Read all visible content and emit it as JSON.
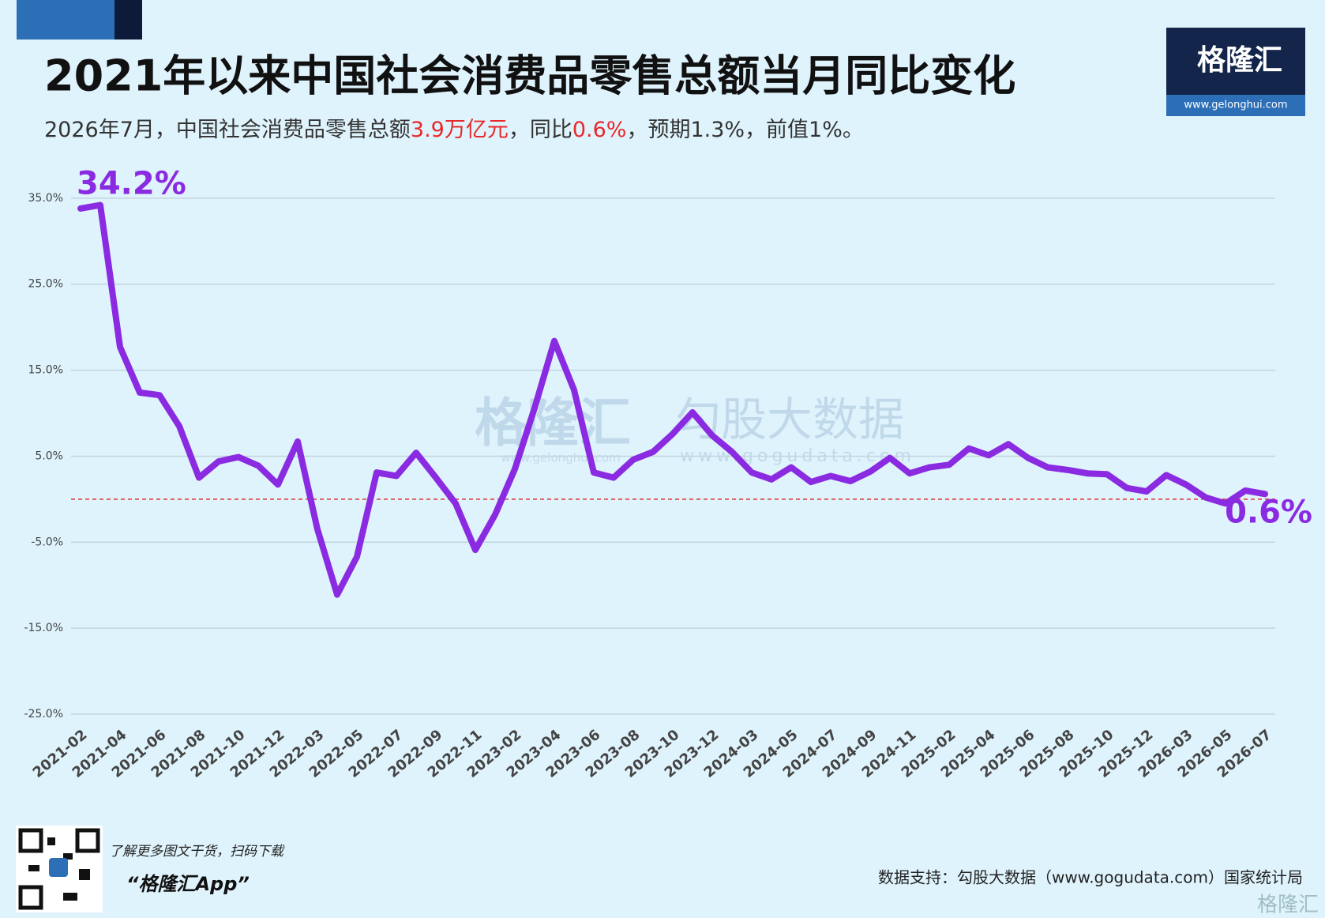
{
  "chart_data": {
    "type": "line",
    "title": "2021年以来中国社会消费品零售总额当月同比变化",
    "subtitle": [
      "2026年7月，中国社会消费品零售总额",
      "3.9万亿元",
      "，同比",
      "0.6%",
      "，预期1.3%，前值1%。"
    ],
    "subtitle_highlight_color": "#e8282b",
    "categories": [
      "2021-02",
      null,
      "2021-04",
      null,
      "2021-06",
      null,
      "2021-08",
      null,
      "2021-10",
      null,
      "2021-12",
      null,
      "2022-03",
      null,
      "2022-05",
      null,
      "2022-07",
      null,
      "2022-09",
      null,
      "2022-11",
      null,
      "2023-02",
      null,
      "2023-04",
      null,
      "2023-06",
      null,
      "2023-08",
      null,
      "2023-10",
      null,
      "2023-12",
      null,
      "2024-03",
      null,
      "2024-05",
      null,
      "2024-07",
      null,
      "2024-09",
      null,
      "2024-11",
      null,
      "2025-02",
      null,
      "2025-04",
      null,
      "2025-06",
      null,
      "2025-08",
      null,
      "2025-10",
      null,
      "2025-12",
      null,
      "2026-03",
      null,
      "2026-05",
      null,
      "2026-07"
    ],
    "series": [
      {
        "name": "社会消费品零售总额当月同比",
        "color": "#8a2be2",
        "values": [
          33.8,
          34.2,
          17.7,
          12.4,
          12.1,
          8.5,
          2.5,
          4.4,
          4.9,
          3.9,
          1.7,
          6.7,
          -3.5,
          -11.1,
          -6.7,
          3.1,
          2.7,
          5.4,
          2.5,
          -0.5,
          -5.9,
          -1.8,
          3.5,
          10.6,
          18.4,
          12.7,
          3.1,
          2.5,
          4.6,
          5.5,
          7.6,
          10.1,
          7.4,
          5.5,
          3.1,
          2.3,
          3.7,
          2.0,
          2.7,
          2.1,
          3.2,
          4.8,
          3.0,
          3.7,
          4.0,
          5.9,
          5.1,
          6.4,
          4.8,
          3.7,
          3.4,
          3.0,
          2.9,
          1.3,
          0.9,
          2.8,
          1.7,
          0.2,
          -0.5,
          1.0,
          0.6
        ],
        "value_labels": [
          null,
          "34.2%",
          null,
          null,
          null,
          null,
          null,
          null,
          null,
          null,
          null,
          null,
          null,
          null,
          null,
          null,
          null,
          null,
          null,
          null,
          null,
          null,
          null,
          null,
          null,
          null,
          null,
          null,
          null,
          null,
          null,
          null,
          null,
          null,
          null,
          null,
          null,
          null,
          null,
          null,
          null,
          null,
          null,
          null,
          null,
          null,
          null,
          null,
          null,
          null,
          null,
          null,
          null,
          null,
          null,
          null,
          null,
          null,
          null,
          null,
          "0.6%"
        ]
      }
    ],
    "ylim": [
      -25,
      36
    ],
    "yticks": [
      {
        "value": -25,
        "label": "-25.0%"
      },
      {
        "value": -15,
        "label": "-15.0%"
      },
      {
        "value": -5,
        "label": "-5.0%"
      },
      {
        "value": 5,
        "label": "5.0%"
      },
      {
        "value": 15,
        "label": "15.0%"
      },
      {
        "value": 25,
        "label": "25.0%"
      },
      {
        "value": 35,
        "label": "35.0%"
      }
    ],
    "grid": true,
    "reference_line": {
      "value": 0,
      "color": "#e03030"
    },
    "logo": {
      "name": "格隆汇",
      "url": "www.gelonghui.com"
    },
    "watermark": [
      "格隆汇",
      "www.gelonghui.com",
      "勾股大数据",
      "www.gogudata.com"
    ],
    "footer": {
      "promo": "了解更多图文干货，扫码下载",
      "app": "“格隆汇App”",
      "source": "数据支持：勾股大数据（www.gogudata.com）国家统计局",
      "corner_logo": "格隆汇"
    }
  }
}
